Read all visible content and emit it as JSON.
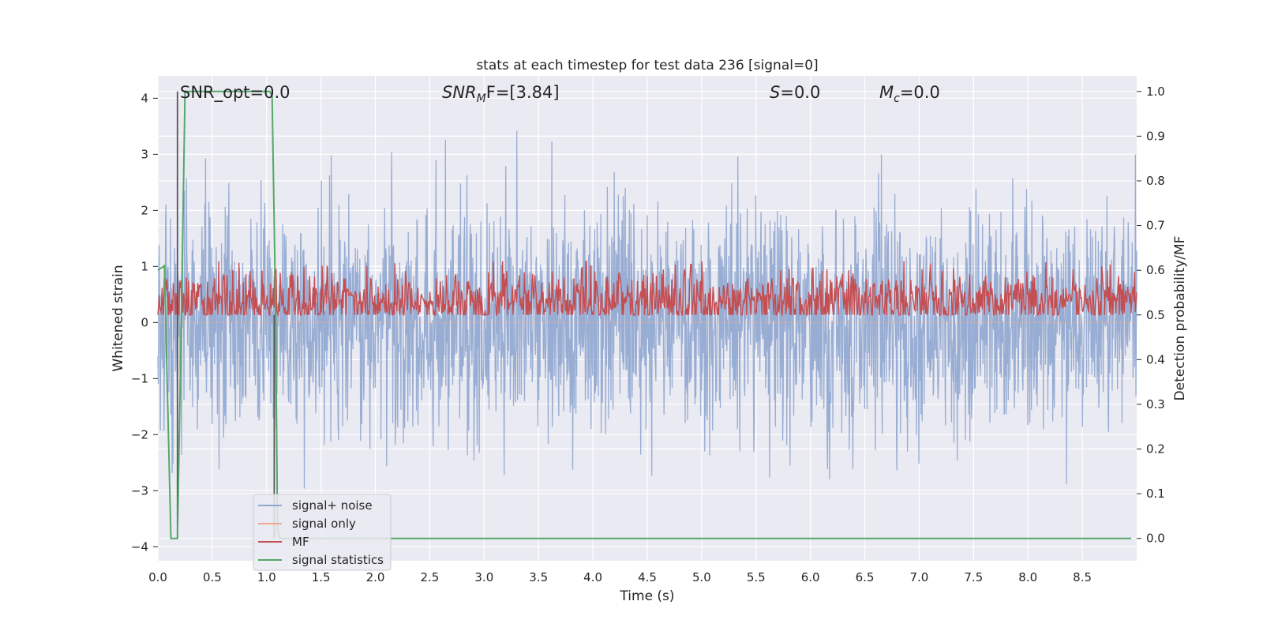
{
  "chart_data": {
    "type": "line",
    "title": "stats at each timestep for test data 236 [signal=0]",
    "xlabel": "Time (s)",
    "ylabel": "Whitened strain",
    "ylabel_right": "Detection probability/MF",
    "xlim": [
      0.0,
      9.0
    ],
    "ylim": [
      -4.25,
      4.4
    ],
    "ylim_right": [
      -0.05,
      1.035
    ],
    "x_ticks": [
      0.0,
      0.5,
      1.0,
      1.5,
      2.0,
      2.5,
      3.0,
      3.5,
      4.0,
      4.5,
      5.0,
      5.5,
      6.0,
      6.5,
      7.0,
      7.5,
      8.0,
      8.5
    ],
    "x_tick_labels": [
      "0.0",
      "0.5",
      "1.0",
      "1.5",
      "2.0",
      "2.5",
      "3.0",
      "3.5",
      "4.0",
      "4.5",
      "5.0",
      "5.5",
      "6.0",
      "6.5",
      "7.0",
      "7.5",
      "8.0",
      "8.5"
    ],
    "y_ticks": [
      4,
      3,
      2,
      1,
      0,
      -1,
      -2,
      -3,
      -4
    ],
    "y_tick_labels": [
      "4",
      "3",
      "2",
      "1",
      "0",
      "−1",
      "−2",
      "−3",
      "−4"
    ],
    "y_right_ticks": [
      1.0,
      0.9,
      0.8,
      0.7,
      0.6,
      0.5,
      0.4,
      0.3,
      0.2,
      0.1,
      0.0
    ],
    "y_right_tick_labels": [
      "1.0",
      "0.9",
      "0.8",
      "0.7",
      "0.6",
      "0.5",
      "0.4",
      "0.3",
      "0.2",
      "0.1",
      "0.0"
    ],
    "grid": true,
    "legend_placement": "lower-left",
    "annotations": {
      "snr_opt": "SNR_opt=0.0",
      "snr_mf_sym": "SNR",
      "snr_mf_sub": "M",
      "snr_mf_rest": "F=[3.84]",
      "s_sym": "S",
      "s_rest": "=0.0",
      "mc_sym": "M",
      "mc_sub": "c",
      "mc_rest": "=0.0"
    },
    "series": [
      {
        "name": "signal+ noise",
        "color": "#8fa6cf",
        "axis": "left",
        "style": "noise",
        "amplitude_sd": 1.0,
        "typical_peak": 2.6,
        "max_peak": 4.0,
        "min_trough": -3.85
      },
      {
        "name": "signal only",
        "color": "#eea98e",
        "axis": "left",
        "style": "flat",
        "value": 0.0
      },
      {
        "name": "MF",
        "color": "#c44e52",
        "axis": "right",
        "style": "noise",
        "baseline": 0.53,
        "amplitude_sd": 0.035,
        "range": [
          0.5,
          0.62
        ]
      },
      {
        "name": "signal statistics",
        "color": "#55a868",
        "axis": "right",
        "style": "line",
        "x": [
          0.0,
          0.06,
          0.12,
          0.18,
          0.22,
          0.25,
          0.3,
          1.0,
          1.03,
          1.05,
          1.08,
          1.1,
          1.12,
          8.95
        ],
        "y": [
          0.6,
          0.61,
          0.0,
          0.0,
          0.55,
          1.0,
          1.0,
          1.0,
          1.0,
          0.99,
          0.55,
          0.02,
          0.0,
          0.0
        ]
      },
      {
        "name": "",
        "color": "#555555",
        "axis": "right",
        "style": "vlines",
        "x": [
          0.18,
          1.07
        ],
        "y": [
          1.0,
          0.5
        ]
      }
    ]
  }
}
